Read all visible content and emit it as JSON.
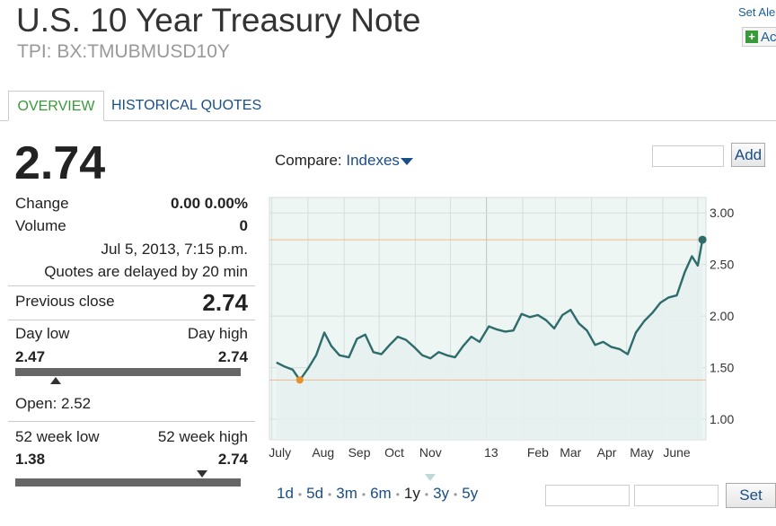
{
  "header": {
    "title": "U.S. 10 Year Treasury Note",
    "subtitle": "TPI: BX:TMUBMUSD10Y",
    "set_alert": "Set Ale",
    "add_watch": "Ac"
  },
  "tabs": [
    {
      "label": "OVERVIEW",
      "active": true
    },
    {
      "label": "HISTORICAL QUOTES",
      "active": false
    }
  ],
  "quote": {
    "price": "2.74",
    "change_label": "Change",
    "change_value": "0.00 0.00%",
    "volume_label": "Volume",
    "volume_value": "0",
    "timestamp": "Jul 5, 2013, 7:15 p.m.",
    "delay_note": "Quotes are delayed by 20 min",
    "prev_close_label": "Previous close",
    "prev_close_value": "2.74",
    "day_low_label": "Day low",
    "day_high_label": "Day high",
    "day_low": "2.47",
    "day_high": "2.74",
    "open_text": "Open: 2.52",
    "week52_low_label": "52 week low",
    "week52_high_label": "52 week high",
    "week52_low": "1.38",
    "week52_high": "2.74",
    "day_marker_fraction": 0.18,
    "week52_marker_fraction": 0.83
  },
  "compare": {
    "label": "Compare:",
    "link": "Indexes",
    "add_label": "Add"
  },
  "range": {
    "links": [
      "1d",
      "5d",
      "3m",
      "6m",
      "1y",
      "3y",
      "5y"
    ],
    "active": "1y",
    "set_label": "Set"
  },
  "colors": {
    "line": "#2e6b6b",
    "fill": "#e4f1ef",
    "plot_bg": "#eef6f3",
    "ref_line": "#f0b890",
    "marker_low": "#e8902a",
    "link": "#1a4e86",
    "active_tab": "#3a9a3a"
  },
  "chart_data": {
    "type": "area",
    "x_tick_labels": [
      "July",
      "Aug",
      "Sep",
      "Oct",
      "Nov",
      "13",
      "Feb",
      "Mar",
      "Apr",
      "May",
      "June"
    ],
    "y_tick_labels": [
      "3.00",
      "2.50",
      "2.00",
      "1.50",
      "1.00"
    ],
    "ylim": [
      0.8,
      3.15
    ],
    "yticks": [
      3.0,
      2.5,
      2.0,
      1.5,
      1.0
    ],
    "reference_lines": [
      2.74,
      1.38
    ],
    "grid": true,
    "low_point": {
      "date": "2012-07-25",
      "value": 1.38
    },
    "last_point": {
      "date": "2013-07-05",
      "value": 2.74
    },
    "dates": [
      "2012-07-05",
      "2012-07-12",
      "2012-07-19",
      "2012-07-25",
      "2012-08-01",
      "2012-08-08",
      "2012-08-15",
      "2012-08-21",
      "2012-08-28",
      "2012-09-05",
      "2012-09-12",
      "2012-09-19",
      "2012-09-26",
      "2012-10-03",
      "2012-10-10",
      "2012-10-17",
      "2012-10-24",
      "2012-10-31",
      "2012-11-07",
      "2012-11-14",
      "2012-11-21",
      "2012-11-28",
      "2012-12-05",
      "2012-12-12",
      "2012-12-19",
      "2012-12-26",
      "2013-01-03",
      "2013-01-10",
      "2013-01-17",
      "2013-01-24",
      "2013-01-31",
      "2013-02-07",
      "2013-02-14",
      "2013-02-21",
      "2013-02-28",
      "2013-03-07",
      "2013-03-14",
      "2013-03-21",
      "2013-03-28",
      "2013-04-04",
      "2013-04-11",
      "2013-04-18",
      "2013-04-25",
      "2013-05-02",
      "2013-05-09",
      "2013-05-16",
      "2013-05-23",
      "2013-05-30",
      "2013-06-06",
      "2013-06-13",
      "2013-06-20",
      "2013-06-26",
      "2013-07-01",
      "2013-07-05"
    ],
    "values": [
      1.55,
      1.51,
      1.48,
      1.38,
      1.49,
      1.62,
      1.84,
      1.71,
      1.62,
      1.6,
      1.78,
      1.82,
      1.65,
      1.63,
      1.72,
      1.8,
      1.77,
      1.7,
      1.62,
      1.59,
      1.65,
      1.62,
      1.6,
      1.71,
      1.8,
      1.75,
      1.9,
      1.87,
      1.85,
      1.86,
      2.02,
      1.99,
      2.01,
      1.96,
      1.88,
      2.01,
      2.06,
      1.93,
      1.86,
      1.72,
      1.75,
      1.7,
      1.68,
      1.63,
      1.84,
      1.95,
      2.03,
      2.13,
      2.18,
      2.2,
      2.43,
      2.58,
      2.49,
      2.74
    ]
  }
}
